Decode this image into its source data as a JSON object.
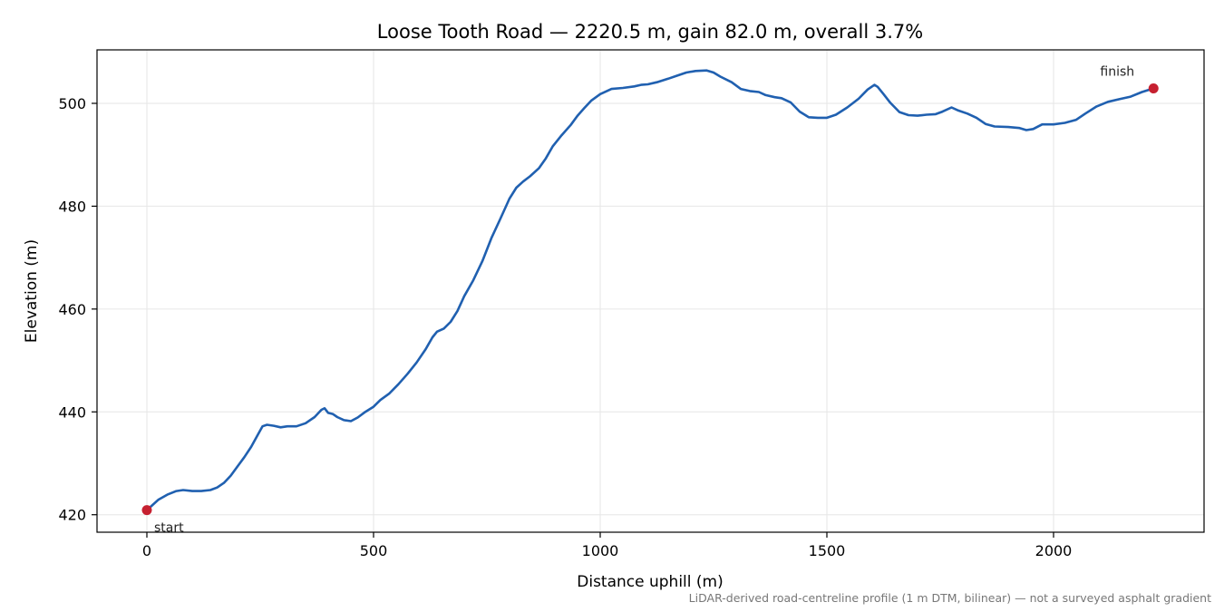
{
  "chart_data": {
    "type": "line",
    "title": "Loose Tooth Road — 2220.5 m, gain 82.0 m, overall 3.7%",
    "xlabel": "Distance uphill (m)",
    "ylabel": "Elevation (m)",
    "footnote": "LiDAR-derived road-centreline profile (1 m DTM, bilinear) — not a surveyed asphalt gradient",
    "xlim": [
      -110,
      2332
    ],
    "ylim": [
      416.6,
      510.4
    ],
    "x_ticks": [
      0,
      500,
      1000,
      1500,
      2000
    ],
    "y_ticks": [
      420,
      440,
      460,
      480,
      500
    ],
    "grid": true,
    "line_color": "#2060b0",
    "marker_color": "#c62030",
    "series": [
      {
        "points": [
          [
            0,
            420.9
          ],
          [
            10,
            421.7
          ],
          [
            25,
            422.9
          ],
          [
            45,
            423.9
          ],
          [
            65,
            424.6
          ],
          [
            80,
            424.8
          ],
          [
            100,
            424.6
          ],
          [
            120,
            424.6
          ],
          [
            140,
            424.8
          ],
          [
            155,
            425.3
          ],
          [
            170,
            426.2
          ],
          [
            185,
            427.6
          ],
          [
            200,
            429.4
          ],
          [
            215,
            431.2
          ],
          [
            230,
            433.2
          ],
          [
            245,
            435.6
          ],
          [
            255,
            437.2
          ],
          [
            265,
            437.5
          ],
          [
            280,
            437.3
          ],
          [
            295,
            437.0
          ],
          [
            310,
            437.2
          ],
          [
            330,
            437.2
          ],
          [
            350,
            437.8
          ],
          [
            370,
            439.0
          ],
          [
            385,
            440.4
          ],
          [
            392,
            440.7
          ],
          [
            400,
            439.8
          ],
          [
            410,
            439.6
          ],
          [
            420,
            439.0
          ],
          [
            435,
            438.4
          ],
          [
            450,
            438.2
          ],
          [
            465,
            438.9
          ],
          [
            480,
            439.9
          ],
          [
            500,
            441.0
          ],
          [
            515,
            442.3
          ],
          [
            535,
            443.6
          ],
          [
            555,
            445.4
          ],
          [
            575,
            447.4
          ],
          [
            595,
            449.6
          ],
          [
            615,
            452.2
          ],
          [
            630,
            454.5
          ],
          [
            640,
            455.6
          ],
          [
            655,
            456.2
          ],
          [
            670,
            457.5
          ],
          [
            685,
            459.6
          ],
          [
            700,
            462.5
          ],
          [
            720,
            465.6
          ],
          [
            740,
            469.3
          ],
          [
            760,
            473.8
          ],
          [
            780,
            477.6
          ],
          [
            800,
            481.5
          ],
          [
            815,
            483.6
          ],
          [
            830,
            484.8
          ],
          [
            845,
            485.8
          ],
          [
            865,
            487.4
          ],
          [
            880,
            489.3
          ],
          [
            895,
            491.6
          ],
          [
            915,
            493.8
          ],
          [
            935,
            495.8
          ],
          [
            950,
            497.6
          ],
          [
            965,
            499.1
          ],
          [
            980,
            500.5
          ],
          [
            1000,
            501.8
          ],
          [
            1025,
            502.8
          ],
          [
            1050,
            503.0
          ],
          [
            1075,
            503.3
          ],
          [
            1090,
            503.6
          ],
          [
            1105,
            503.7
          ],
          [
            1125,
            504.1
          ],
          [
            1150,
            504.8
          ],
          [
            1170,
            505.4
          ],
          [
            1190,
            506.0
          ],
          [
            1210,
            506.3
          ],
          [
            1235,
            506.4
          ],
          [
            1250,
            506.0
          ],
          [
            1265,
            505.2
          ],
          [
            1290,
            504.1
          ],
          [
            1310,
            502.8
          ],
          [
            1330,
            502.4
          ],
          [
            1350,
            502.2
          ],
          [
            1365,
            501.6
          ],
          [
            1385,
            501.2
          ],
          [
            1400,
            501.0
          ],
          [
            1420,
            500.2
          ],
          [
            1440,
            498.4
          ],
          [
            1460,
            497.3
          ],
          [
            1480,
            497.2
          ],
          [
            1500,
            497.2
          ],
          [
            1520,
            497.8
          ],
          [
            1545,
            499.2
          ],
          [
            1570,
            500.9
          ],
          [
            1590,
            502.7
          ],
          [
            1605,
            503.6
          ],
          [
            1612,
            503.2
          ],
          [
            1625,
            501.8
          ],
          [
            1640,
            500.1
          ],
          [
            1660,
            498.3
          ],
          [
            1680,
            497.7
          ],
          [
            1700,
            497.6
          ],
          [
            1720,
            497.8
          ],
          [
            1740,
            497.9
          ],
          [
            1755,
            498.4
          ],
          [
            1775,
            499.2
          ],
          [
            1790,
            498.6
          ],
          [
            1810,
            498.0
          ],
          [
            1830,
            497.2
          ],
          [
            1850,
            496.0
          ],
          [
            1870,
            495.5
          ],
          [
            1900,
            495.4
          ],
          [
            1925,
            495.2
          ],
          [
            1940,
            494.8
          ],
          [
            1955,
            495.0
          ],
          [
            1975,
            495.9
          ],
          [
            2000,
            495.9
          ],
          [
            2025,
            496.2
          ],
          [
            2050,
            496.8
          ],
          [
            2070,
            498.0
          ],
          [
            2095,
            499.4
          ],
          [
            2120,
            500.3
          ],
          [
            2145,
            500.8
          ],
          [
            2170,
            501.3
          ],
          [
            2195,
            502.2
          ],
          [
            2220.5,
            502.9
          ]
        ]
      }
    ],
    "annotations": [
      {
        "text": "start",
        "x": 0,
        "y": 420.9,
        "placement": "below-right"
      },
      {
        "text": "finish",
        "x": 2220.5,
        "y": 502.9,
        "placement": "above-left"
      }
    ]
  }
}
